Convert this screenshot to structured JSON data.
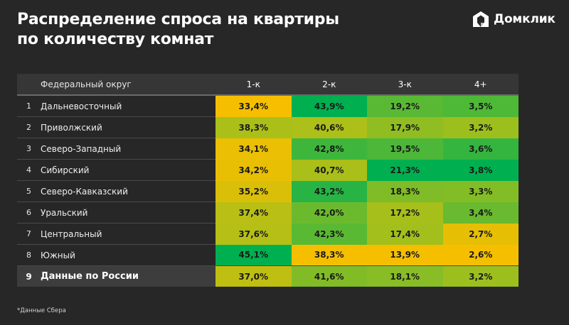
{
  "header": {
    "title_line1": "Распределение спроса на квартиры",
    "title_line2": "по количеству комнат",
    "logo_text": "Домклик",
    "logo_icon": "domclick-house-icon"
  },
  "footnote": "*Данные Сбера",
  "colors": {
    "background": "#272727",
    "header_row": "#363636",
    "total_row": "#3d3d3d",
    "scale_low": "#f5bf00",
    "scale_mid": "#9dbf1e",
    "scale_high": "#00b050"
  },
  "chart_data": {
    "type": "heatmap",
    "title": "Распределение спроса на квартиры по количеству комнат",
    "row_header": "Федеральный округ",
    "columns": [
      "1-к",
      "2-к",
      "3-к",
      "4+"
    ],
    "rows": [
      {
        "num": "1",
        "name": "Дальневосточный",
        "values": [
          "33,4%",
          "43,9%",
          "19,2%",
          "3,5%"
        ],
        "numeric": [
          33.4,
          43.9,
          19.2,
          3.5
        ]
      },
      {
        "num": "2",
        "name": "Приволжский",
        "values": [
          "38,3%",
          "40,6%",
          "17,9%",
          "3,2%"
        ],
        "numeric": [
          38.3,
          40.6,
          17.9,
          3.2
        ]
      },
      {
        "num": "3",
        "name": "Северо-Западный",
        "values": [
          "34,1%",
          "42,8%",
          "19,5%",
          "3,6%"
        ],
        "numeric": [
          34.1,
          42.8,
          19.5,
          3.6
        ]
      },
      {
        "num": "4",
        "name": "Сибирский",
        "values": [
          "34,2%",
          "40,7%",
          "21,3%",
          "3,8%"
        ],
        "numeric": [
          34.2,
          40.7,
          21.3,
          3.8
        ]
      },
      {
        "num": "5",
        "name": "Северо-Кавказский",
        "values": [
          "35,2%",
          "43,2%",
          "18,3%",
          "3,3%"
        ],
        "numeric": [
          35.2,
          43.2,
          18.3,
          3.3
        ]
      },
      {
        "num": "6",
        "name": "Уральский",
        "values": [
          "37,4%",
          "42,0%",
          "17,2%",
          "3,4%"
        ],
        "numeric": [
          37.4,
          42.0,
          17.2,
          3.4
        ]
      },
      {
        "num": "7",
        "name": "Центральный",
        "values": [
          "37,6%",
          "42,3%",
          "17,4%",
          "2,7%"
        ],
        "numeric": [
          37.6,
          42.3,
          17.4,
          2.7
        ]
      },
      {
        "num": "8",
        "name": "Южный",
        "values": [
          "45,1%",
          "38,3%",
          "13,9%",
          "2,6%"
        ],
        "numeric": [
          45.1,
          38.3,
          13.9,
          2.6
        ]
      }
    ],
    "total": {
      "num": "9",
      "name": "Данные по России",
      "values": [
        "37,0%",
        "41,6%",
        "18,1%",
        "3,2%"
      ],
      "numeric": [
        37.0,
        41.6,
        18.1,
        3.2
      ]
    }
  }
}
